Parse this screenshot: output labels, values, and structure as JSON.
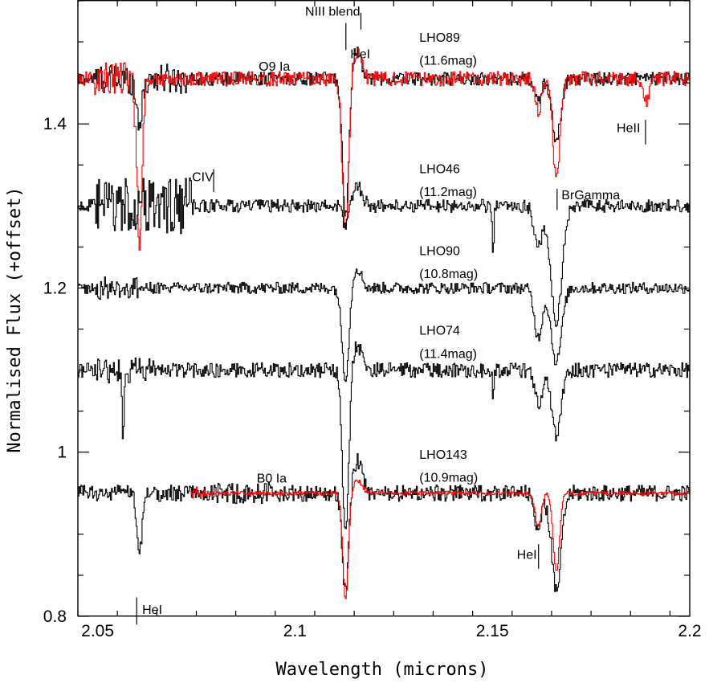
{
  "chart_data": {
    "type": "line",
    "title": "",
    "xlabel": "Wavelength (microns)",
    "ylabel": "Normalised Flux (+offset)",
    "xlim": [
      2.045,
      2.2
    ],
    "ylim": [
      0.8,
      1.55
    ],
    "x_ticks": [
      {
        "value": 2.05,
        "label": "2.05"
      },
      {
        "value": 2.1,
        "label": "2.1"
      },
      {
        "value": 2.15,
        "label": "2.15"
      },
      {
        "value": 2.2,
        "label": "2.2"
      }
    ],
    "y_ticks": [
      {
        "value": 0.8,
        "label": "0.8"
      },
      {
        "value": 1.0,
        "label": "1"
      },
      {
        "value": 1.2,
        "label": "1.2"
      },
      {
        "value": 1.4,
        "label": "1.4"
      }
    ],
    "colors": {
      "observed": "#000000",
      "model": "#ff0000"
    },
    "grid": false,
    "series": [
      {
        "color": "#000000",
        "kind": "observed",
        "x_range": [
          2.045,
          2.2
        ],
        "continuum": 1.455,
        "noise_amplitude": 0.008,
        "extra_noise": [
          {
            "x": [
              2.049,
              2.073
            ],
            "amplitude": 0.018
          }
        ],
        "features": [
          {
            "x": 2.0605,
            "depth": 0.05,
            "width": 0.0008
          },
          {
            "x": 2.1127,
            "depth": 0.17,
            "width": 0.0008
          },
          {
            "x": 2.1155,
            "depth": -0.035,
            "width": 0.0012
          },
          {
            "x": 2.1615,
            "depth": 0.03,
            "width": 0.0008
          },
          {
            "x": 2.1661,
            "depth": 0.075,
            "width": 0.0011
          }
        ]
      },
      {
        "color": "#ff0000",
        "kind": "model",
        "x_range": [
          2.045,
          2.2
        ],
        "continuum": 1.455,
        "noise_amplitude": 0.009,
        "extra_noise": [
          {
            "x": [
              2.049,
              2.062
            ],
            "amplitude": 0.02
          }
        ],
        "features": [
          {
            "x": 2.0605,
            "depth": 0.19,
            "width": 0.0007
          },
          {
            "x": 2.1127,
            "depth": 0.19,
            "width": 0.0008
          },
          {
            "x": 2.1155,
            "depth": -0.035,
            "width": 0.0012
          },
          {
            "x": 2.1615,
            "depth": 0.04,
            "width": 0.0008
          },
          {
            "x": 2.1661,
            "depth": 0.12,
            "width": 0.0009
          },
          {
            "x": 2.1889,
            "depth": 0.03,
            "width": 0.0006
          }
        ]
      },
      {
        "color": "#000000",
        "kind": "observed",
        "x_range": [
          2.045,
          2.2
        ],
        "continuum": 1.3,
        "noise_amplitude": 0.008,
        "extra_noise": [
          {
            "x": [
              2.049,
              2.074
            ],
            "amplitude": 0.035
          }
        ],
        "features": [
          {
            "x": 2.1127,
            "depth": 0.025,
            "width": 0.0007
          },
          {
            "x": 2.1157,
            "depth": -0.025,
            "width": 0.0012
          },
          {
            "x": 2.1501,
            "depth": 0.07,
            "width": 0.0002
          },
          {
            "x": 2.1615,
            "depth": 0.05,
            "width": 0.001
          },
          {
            "x": 2.1661,
            "depth": 0.14,
            "width": 0.0014
          }
        ]
      },
      {
        "color": "#000000",
        "kind": "observed",
        "x_range": [
          2.045,
          2.2
        ],
        "continuum": 1.2,
        "noise_amplitude": 0.007,
        "extra_noise": [
          {
            "x": [
              2.049,
              2.06
            ],
            "amplitude": 0.014
          }
        ],
        "features": [
          {
            "x": 2.1127,
            "depth": 0.11,
            "width": 0.0009
          },
          {
            "x": 2.1155,
            "depth": -0.025,
            "width": 0.0012
          },
          {
            "x": 2.1615,
            "depth": 0.06,
            "width": 0.001
          },
          {
            "x": 2.1661,
            "depth": 0.09,
            "width": 0.0013
          }
        ]
      },
      {
        "color": "#000000",
        "kind": "observed",
        "x_range": [
          2.045,
          2.2
        ],
        "continuum": 1.1,
        "noise_amplitude": 0.009,
        "extra_noise": [
          {
            "x": [
              2.049,
              2.065
            ],
            "amplitude": 0.016
          }
        ],
        "features": [
          {
            "x": 2.0563,
            "depth": 0.1,
            "width": 0.0002
          },
          {
            "x": 2.1127,
            "depth": 0.2,
            "width": 0.0008
          },
          {
            "x": 2.1157,
            "depth": -0.03,
            "width": 0.0012
          },
          {
            "x": 2.1501,
            "depth": 0.03,
            "width": 0.0002
          },
          {
            "x": 2.1615,
            "depth": 0.04,
            "width": 0.001
          },
          {
            "x": 2.1661,
            "depth": 0.08,
            "width": 0.0012
          }
        ]
      },
      {
        "color": "#000000",
        "kind": "observed",
        "x_range": [
          2.045,
          2.2
        ],
        "continuum": 0.95,
        "noise_amplitude": 0.01,
        "extra_noise": [
          {
            "x": [
              2.08,
              2.095
            ],
            "amplitude": 0.013
          }
        ],
        "features": [
          {
            "x": 2.0605,
            "depth": 0.07,
            "width": 0.0007
          },
          {
            "x": 2.1127,
            "depth": 0.12,
            "width": 0.0008
          },
          {
            "x": 2.1157,
            "depth": -0.04,
            "width": 0.0012
          },
          {
            "x": 2.1615,
            "depth": 0.04,
            "width": 0.001
          },
          {
            "x": 2.1661,
            "depth": 0.12,
            "width": 0.0012
          }
        ]
      },
      {
        "color": "#ff0000",
        "kind": "model",
        "x_range": [
          2.0735,
          2.2
        ],
        "continuum": 0.95,
        "noise_amplitude": 0.0025,
        "extra_noise": [
          {
            "x": [
              2.0735,
              2.077
            ],
            "amplitude": 0.008
          }
        ],
        "features": [
          {
            "x": 2.1127,
            "depth": 0.13,
            "width": 0.0007
          },
          {
            "x": 2.1157,
            "depth": -0.015,
            "width": 0.0012
          },
          {
            "x": 2.1615,
            "depth": 0.04,
            "width": 0.0008
          },
          {
            "x": 2.1661,
            "depth": 0.095,
            "width": 0.0008
          }
        ]
      }
    ],
    "annotations": [
      {
        "text": "NIII blend",
        "x": 2.1165,
        "y": 1.532,
        "anchor": "end",
        "color": "#000000"
      },
      {
        "text": "HeI",
        "x": 2.114,
        "y": 1.48,
        "anchor": "start",
        "color": "#000000"
      },
      {
        "text": "LHO89",
        "x": 2.1315,
        "y": 1.5,
        "anchor": "start",
        "color": "#000000"
      },
      {
        "text": "(11.6mag)",
        "x": 2.1315,
        "y": 1.472,
        "anchor": "start",
        "color": "#000000"
      },
      {
        "text": "O9 Ia",
        "x": 2.0908,
        "y": 1.465,
        "anchor": "start",
        "color": "#ff0000"
      },
      {
        "text": "HeII",
        "x": 2.1815,
        "y": 1.39,
        "anchor": "start",
        "color": "#000000"
      },
      {
        "text": "CIV",
        "x": 2.0739,
        "y": 1.33,
        "anchor": "start",
        "color": "#000000"
      },
      {
        "text": "LHO46",
        "x": 2.1315,
        "y": 1.34,
        "anchor": "start",
        "color": "#000000"
      },
      {
        "text": "(11.2mag)",
        "x": 2.1315,
        "y": 1.312,
        "anchor": "start",
        "color": "#000000"
      },
      {
        "text": "BrGamma",
        "x": 2.1675,
        "y": 1.308,
        "anchor": "start",
        "color": "#000000"
      },
      {
        "text": "LHO90",
        "x": 2.1315,
        "y": 1.24,
        "anchor": "start",
        "color": "#000000"
      },
      {
        "text": "(10.8mag)",
        "x": 2.1315,
        "y": 1.212,
        "anchor": "start",
        "color": "#000000"
      },
      {
        "text": "LHO74",
        "x": 2.1315,
        "y": 1.143,
        "anchor": "start",
        "color": "#000000"
      },
      {
        "text": "(11.4mag)",
        "x": 2.1315,
        "y": 1.115,
        "anchor": "start",
        "color": "#000000"
      },
      {
        "text": "LHO143",
        "x": 2.1315,
        "y": 0.992,
        "anchor": "start",
        "color": "#000000"
      },
      {
        "text": "(10.9mag)",
        "x": 2.1315,
        "y": 0.964,
        "anchor": "start",
        "color": "#000000"
      },
      {
        "text": "B0 Ia",
        "x": 2.0903,
        "y": 0.963,
        "anchor": "start",
        "color": "#ff0000"
      },
      {
        "text": "HeI",
        "x": 2.1562,
        "y": 0.87,
        "anchor": "start",
        "color": "#000000"
      },
      {
        "text": "HeI",
        "x": 2.0613,
        "y": 0.803,
        "anchor": "start",
        "color": "#000000"
      }
    ],
    "line_markers": [
      {
        "x": 2.1167,
        "y1": 1.5355,
        "y2": 1.515
      },
      {
        "x": 2.1129,
        "y1": 1.523,
        "y2": 1.49
      },
      {
        "x": 2.1888,
        "y1": 1.405,
        "y2": 1.375
      },
      {
        "x": 2.0794,
        "y1": 1.345,
        "y2": 1.317
      },
      {
        "x": 2.1664,
        "y1": 1.321,
        "y2": 1.295
      },
      {
        "x": 2.1617,
        "y1": 0.888,
        "y2": 0.858
      },
      {
        "x": 2.0599,
        "y1": 0.823,
        "y2": 0.79
      }
    ]
  }
}
